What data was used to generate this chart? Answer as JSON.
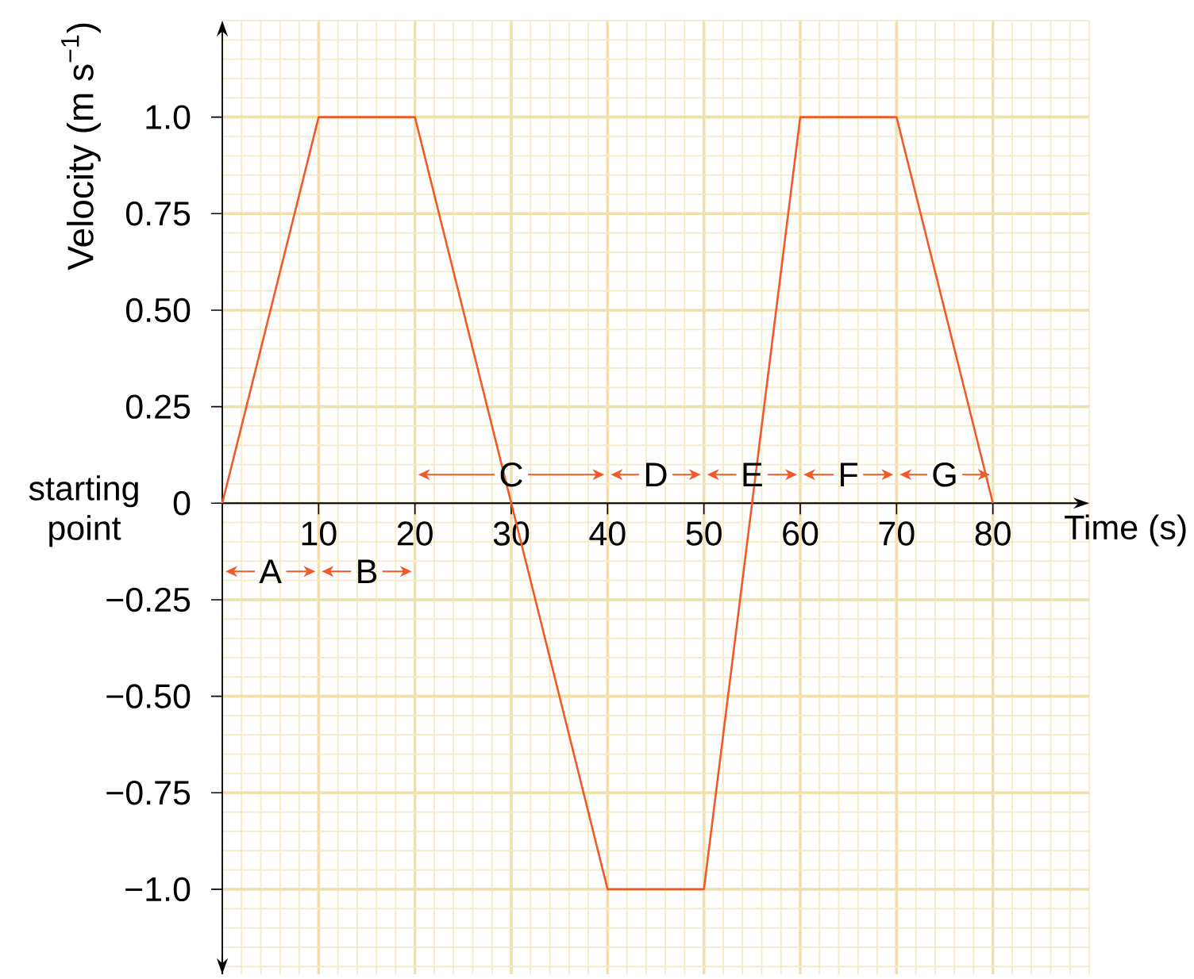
{
  "chart_data": {
    "type": "line",
    "xlabel": "Time (s)",
    "ylabel": "Velocity (m s$^{−1}$)",
    "x": [
      0,
      10,
      20,
      40,
      50,
      60,
      70,
      80
    ],
    "series": [
      {
        "color": "#f05a28",
        "values": [
          0,
          1,
          1,
          -1,
          -1,
          1,
          1,
          0
        ]
      }
    ],
    "xlim": [
      0,
      90
    ],
    "ylim": [
      -1.22,
      1.25
    ],
    "xticks": [
      10,
      20,
      30,
      40,
      50,
      60,
      70,
      80
    ],
    "yticks": [
      {
        "value": -1,
        "label": "−1.0"
      },
      {
        "value": -0.75,
        "label": "−0.75"
      },
      {
        "value": -0.5,
        "label": "−0.50"
      },
      {
        "value": -0.25,
        "label": "−0.25"
      },
      0,
      0.25,
      {
        "value": 0.5,
        "label": "0.50"
      },
      0.75,
      {
        "value": 1,
        "label": "1.0"
      }
    ],
    "grid": true,
    "annotations": [
      "starting point",
      "A",
      "B",
      "C",
      "D",
      "E",
      "F",
      "G"
    ]
  }
}
